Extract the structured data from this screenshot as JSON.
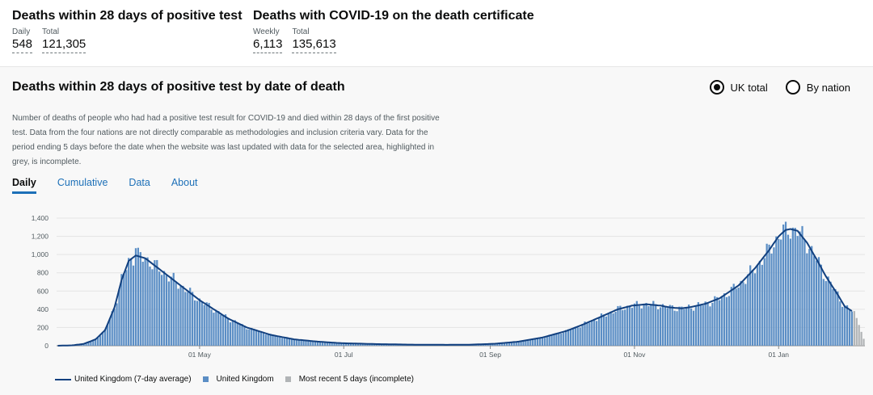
{
  "summary": [
    {
      "title": "Deaths within 28 days of positive test",
      "metrics": [
        {
          "label": "Daily",
          "value": "548"
        },
        {
          "label": "Total",
          "value": "121,305"
        }
      ]
    },
    {
      "title": "Deaths with COVID-19 on the death certificate",
      "metrics": [
        {
          "label": "Weekly",
          "value": "6,113"
        },
        {
          "label": "Total",
          "value": "135,613"
        }
      ]
    }
  ],
  "card": {
    "title": "Deaths within 28 days of positive test by date of death",
    "radios": [
      {
        "label": "UK total",
        "selected": true
      },
      {
        "label": "By nation",
        "selected": false
      }
    ],
    "description": "Number of deaths of people who had had a positive test result for COVID-19 and died within 28 days of the first positive test. Data from the four nations are not directly comparable as methodologies and inclusion criteria vary. Data for the period ending 5 days before the date when the website was last updated with data for the selected area, highlighted in grey, is incomplete.",
    "tabs": [
      "Daily",
      "Cumulative",
      "Data",
      "About"
    ],
    "active_tab": "Daily"
  },
  "legend": [
    {
      "label": "United Kingdom (7-day average)",
      "kind": "line",
      "color": "#12407f"
    },
    {
      "label": "United Kingdom",
      "kind": "box",
      "color": "#5b8ec5"
    },
    {
      "label": "Most recent 5 days (incomplete)",
      "kind": "box",
      "color": "#b1b4b6"
    }
  ],
  "chart_data": {
    "type": "bar",
    "x_ticks": [
      "01 May",
      "01 Jul",
      "01 Sep",
      "01 Nov",
      "01 Jan"
    ],
    "y_ticks": [
      "0",
      "200",
      "400",
      "600",
      "800",
      "1,000",
      "1,200",
      "1,400"
    ],
    "ylim": [
      0,
      1400
    ],
    "grid": true,
    "legend_position": "bottom-left",
    "colors": {
      "bar": "#5b8ec5",
      "line": "#12407f",
      "incomplete": "#b1b4b6"
    },
    "daily_keypoints": [
      [
        0,
        0
      ],
      [
        6,
        4
      ],
      [
        11,
        20
      ],
      [
        16,
        70
      ],
      [
        20,
        170
      ],
      [
        24,
        420
      ],
      [
        27,
        720
      ],
      [
        30,
        930
      ],
      [
        33,
        990
      ],
      [
        37,
        960
      ],
      [
        42,
        860
      ],
      [
        48,
        740
      ],
      [
        54,
        620
      ],
      [
        60,
        500
      ],
      [
        66,
        400
      ],
      [
        72,
        300
      ],
      [
        80,
        200
      ],
      [
        90,
        120
      ],
      [
        100,
        70
      ],
      [
        110,
        45
      ],
      [
        120,
        28
      ],
      [
        135,
        18
      ],
      [
        150,
        12
      ],
      [
        165,
        10
      ],
      [
        175,
        12
      ],
      [
        185,
        22
      ],
      [
        195,
        45
      ],
      [
        205,
        90
      ],
      [
        215,
        160
      ],
      [
        222,
        230
      ],
      [
        230,
        320
      ],
      [
        237,
        400
      ],
      [
        243,
        440
      ],
      [
        249,
        455
      ],
      [
        255,
        440
      ],
      [
        259,
        420
      ],
      [
        264,
        410
      ],
      [
        268,
        425
      ],
      [
        274,
        460
      ],
      [
        280,
        520
      ],
      [
        288,
        660
      ],
      [
        295,
        850
      ],
      [
        301,
        1050
      ],
      [
        305,
        1200
      ],
      [
        308,
        1270
      ],
      [
        310,
        1280
      ],
      [
        313,
        1260
      ],
      [
        317,
        1130
      ],
      [
        321,
        950
      ],
      [
        325,
        760
      ],
      [
        330,
        560
      ],
      [
        333,
        430
      ],
      [
        336,
        380
      ],
      [
        341,
        200
      ]
    ],
    "incomplete_last_days": 5,
    "peaks": [
      {
        "day": 33,
        "value": 1070
      },
      {
        "day": 308,
        "value": 1360
      }
    ]
  }
}
